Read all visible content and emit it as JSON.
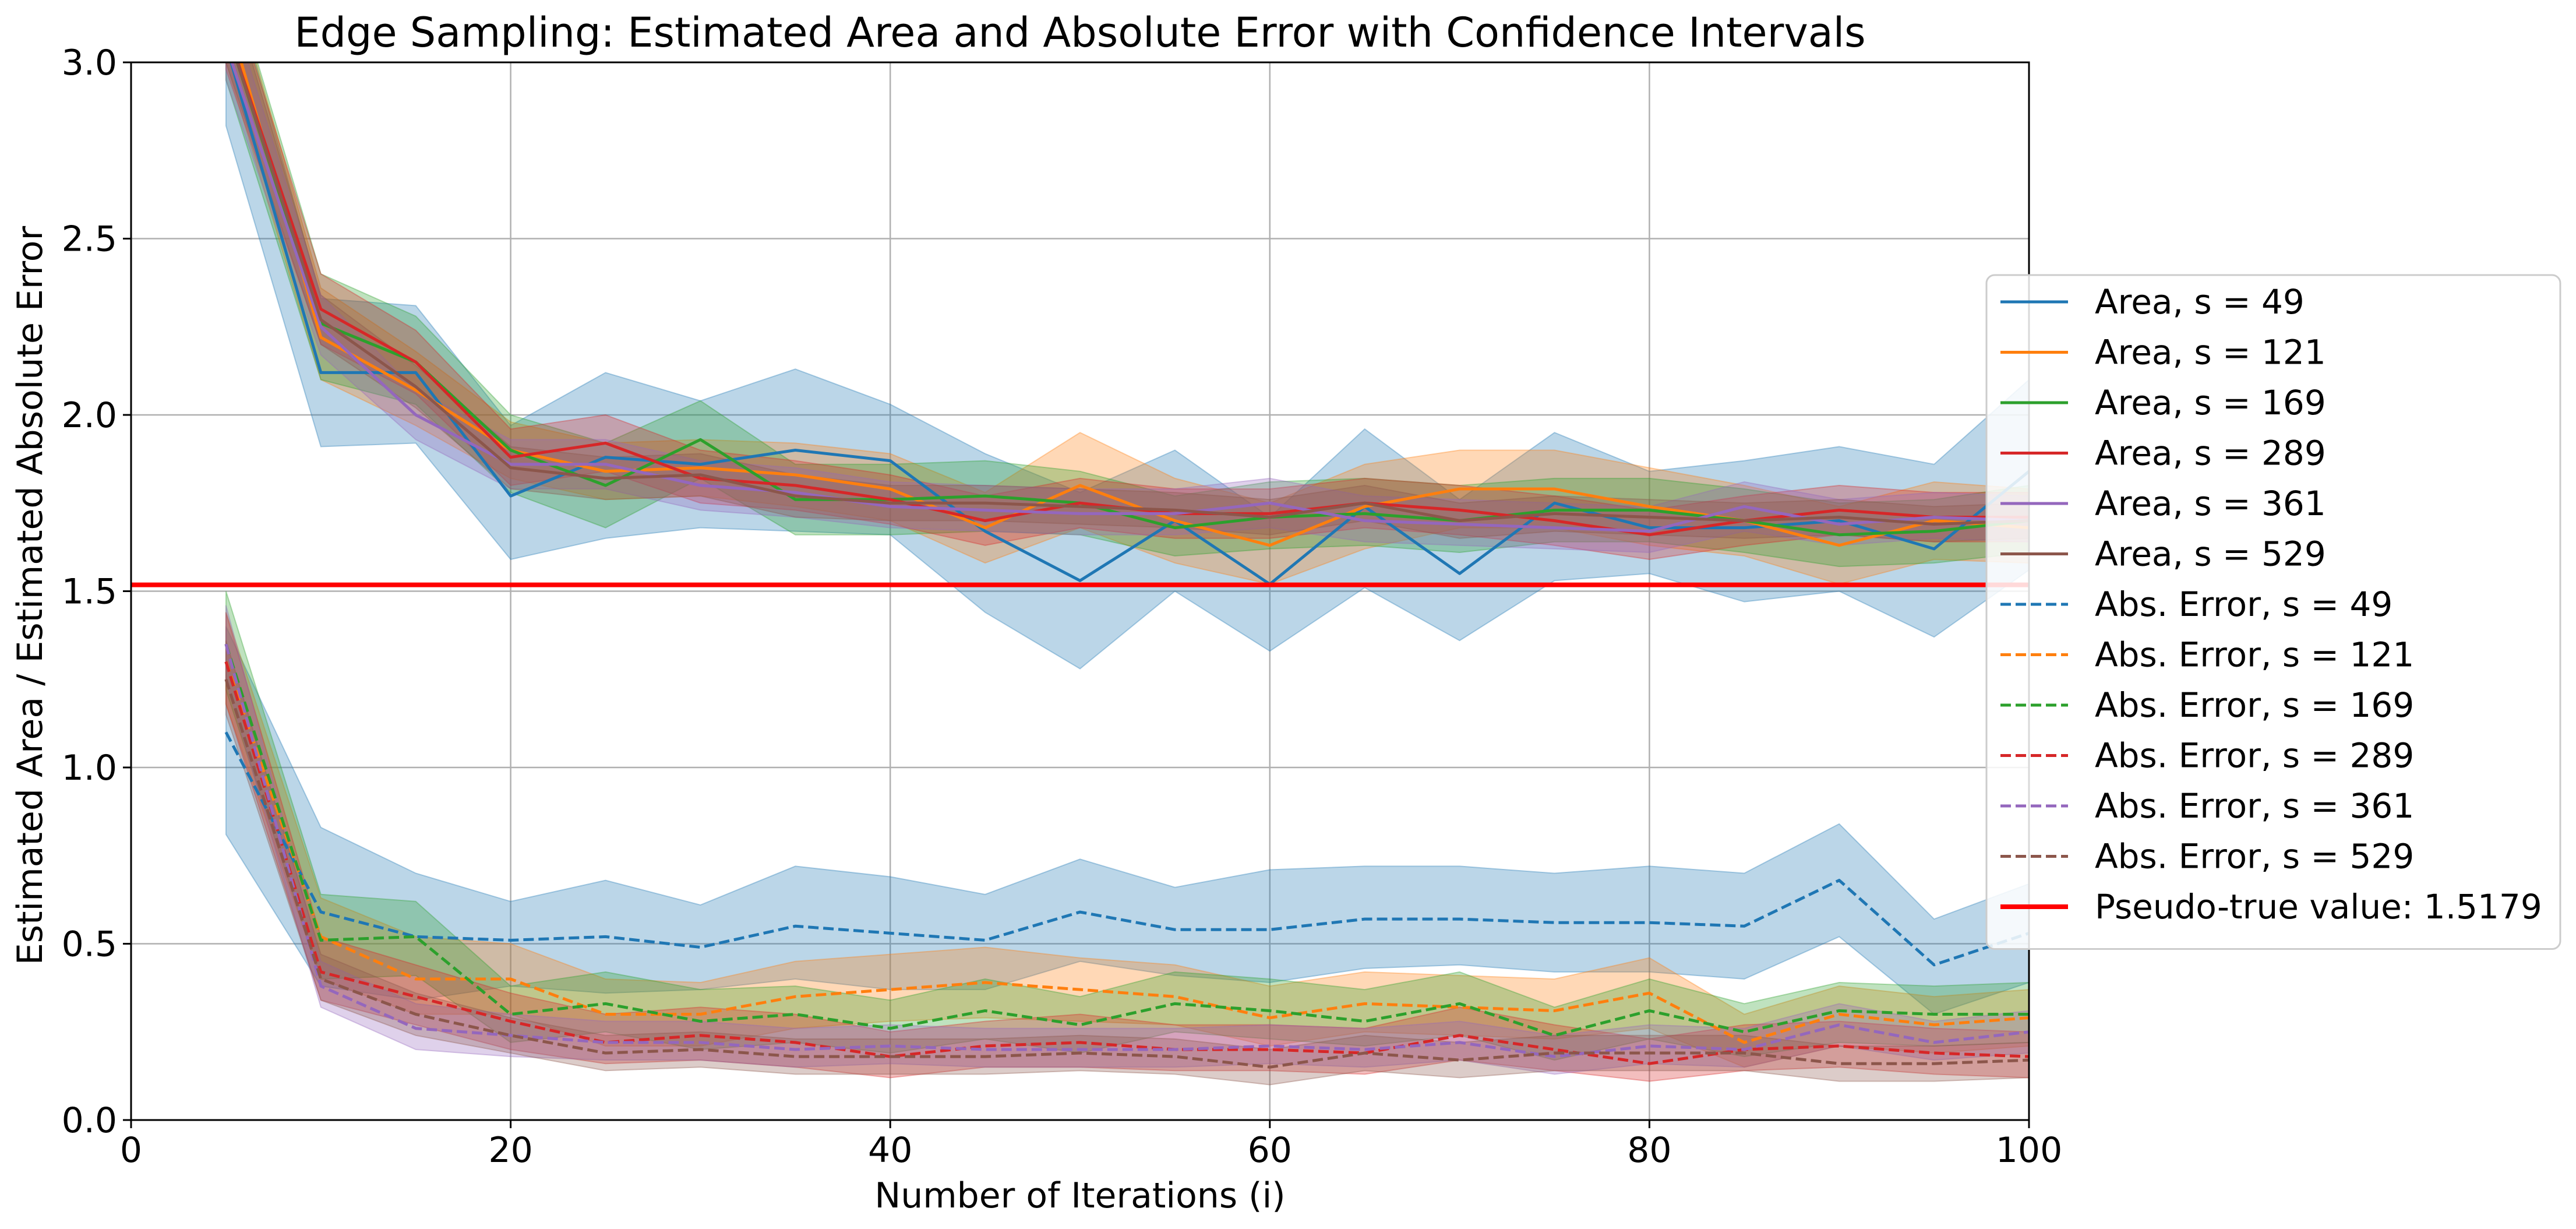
{
  "chart_data": {
    "type": "line",
    "title": "Edge Sampling: Estimated Area and Absolute Error with Confidence Intervals",
    "xlabel": "Number of Iterations (i)",
    "ylabel": "Estimated Area / Estimated Absolute Error",
    "xlim": [
      0,
      100
    ],
    "ylim": [
      0,
      3.0
    ],
    "xticks": [
      0,
      20,
      40,
      60,
      80,
      100
    ],
    "yticks": [
      0.0,
      0.5,
      1.0,
      1.5,
      2.0,
      2.5,
      3.0
    ],
    "xtick_labels": [
      "0",
      "20",
      "40",
      "60",
      "80",
      "100"
    ],
    "ytick_labels": [
      "0.0",
      "0.5",
      "1.0",
      "1.5",
      "2.0",
      "2.5",
      "3.0"
    ],
    "grid": true,
    "legend_position": "right",
    "x": [
      5,
      10,
      15,
      20,
      25,
      30,
      35,
      40,
      45,
      50,
      55,
      60,
      65,
      70,
      75,
      80,
      85,
      90,
      95,
      100
    ],
    "series": [
      {
        "name": "Area, s = 49",
        "color": "#1f77b4",
        "style": "solid",
        "values": [
          3.05,
          2.12,
          2.12,
          1.77,
          1.88,
          1.86,
          1.9,
          1.87,
          1.67,
          1.53,
          1.7,
          1.52,
          1.74,
          1.55,
          1.75,
          1.68,
          1.68,
          1.7,
          1.62,
          1.84
        ],
        "lower": [
          2.82,
          1.91,
          1.92,
          1.59,
          1.65,
          1.68,
          1.67,
          1.66,
          1.44,
          1.28,
          1.5,
          1.33,
          1.51,
          1.36,
          1.53,
          1.55,
          1.47,
          1.5,
          1.37,
          1.56
        ],
        "upper": [
          3.3,
          2.33,
          2.31,
          1.97,
          2.12,
          2.04,
          2.13,
          2.03,
          1.89,
          1.78,
          1.9,
          1.71,
          1.96,
          1.76,
          1.95,
          1.84,
          1.87,
          1.91,
          1.86,
          2.1
        ]
      },
      {
        "name": "Area, s = 121",
        "color": "#ff7f0e",
        "style": "solid",
        "values": [
          3.15,
          2.22,
          2.07,
          1.9,
          1.84,
          1.85,
          1.83,
          1.79,
          1.68,
          1.8,
          1.7,
          1.63,
          1.74,
          1.79,
          1.79,
          1.74,
          1.7,
          1.63,
          1.7,
          1.68
        ],
        "lower": [
          3.0,
          2.1,
          1.97,
          1.82,
          1.76,
          1.77,
          1.74,
          1.7,
          1.58,
          1.68,
          1.58,
          1.52,
          1.62,
          1.68,
          1.68,
          1.63,
          1.6,
          1.52,
          1.59,
          1.58
        ],
        "upper": [
          3.3,
          2.36,
          2.18,
          1.98,
          1.92,
          1.93,
          1.92,
          1.89,
          1.78,
          1.95,
          1.82,
          1.75,
          1.86,
          1.9,
          1.9,
          1.85,
          1.8,
          1.74,
          1.81,
          1.79
        ]
      },
      {
        "name": "Area, s = 169",
        "color": "#2ca02c",
        "style": "solid",
        "values": [
          3.1,
          2.26,
          2.15,
          1.9,
          1.8,
          1.93,
          1.76,
          1.76,
          1.77,
          1.75,
          1.68,
          1.71,
          1.72,
          1.7,
          1.73,
          1.73,
          1.7,
          1.66,
          1.67,
          1.7
        ],
        "lower": [
          2.95,
          2.1,
          2.03,
          1.78,
          1.68,
          1.82,
          1.66,
          1.66,
          1.67,
          1.66,
          1.6,
          1.62,
          1.63,
          1.61,
          1.64,
          1.64,
          1.61,
          1.57,
          1.58,
          1.61
        ],
        "upper": [
          3.3,
          2.4,
          2.28,
          2.0,
          1.92,
          2.04,
          1.86,
          1.86,
          1.87,
          1.84,
          1.77,
          1.81,
          1.82,
          1.8,
          1.82,
          1.82,
          1.79,
          1.75,
          1.76,
          1.8
        ]
      },
      {
        "name": "Area, s = 289",
        "color": "#d62728",
        "style": "solid",
        "values": [
          3.1,
          2.3,
          2.15,
          1.88,
          1.92,
          1.82,
          1.8,
          1.76,
          1.7,
          1.75,
          1.72,
          1.72,
          1.75,
          1.73,
          1.7,
          1.66,
          1.7,
          1.73,
          1.71,
          1.71
        ],
        "lower": [
          2.98,
          2.2,
          2.06,
          1.8,
          1.84,
          1.75,
          1.73,
          1.69,
          1.63,
          1.68,
          1.65,
          1.65,
          1.68,
          1.66,
          1.63,
          1.59,
          1.63,
          1.66,
          1.64,
          1.64
        ],
        "upper": [
          3.25,
          2.4,
          2.24,
          1.96,
          2.0,
          1.9,
          1.87,
          1.83,
          1.77,
          1.82,
          1.79,
          1.79,
          1.82,
          1.8,
          1.77,
          1.73,
          1.77,
          1.8,
          1.78,
          1.78
        ]
      },
      {
        "name": "Area, s = 361",
        "color": "#9467bd",
        "style": "solid",
        "values": [
          3.05,
          2.25,
          2.0,
          1.86,
          1.86,
          1.8,
          1.78,
          1.74,
          1.73,
          1.72,
          1.72,
          1.75,
          1.7,
          1.69,
          1.68,
          1.67,
          1.74,
          1.69,
          1.71,
          1.7
        ],
        "lower": [
          2.95,
          2.17,
          1.93,
          1.79,
          1.79,
          1.73,
          1.71,
          1.68,
          1.67,
          1.66,
          1.66,
          1.68,
          1.64,
          1.63,
          1.62,
          1.61,
          1.67,
          1.63,
          1.65,
          1.64
        ],
        "upper": [
          3.2,
          2.34,
          2.07,
          1.93,
          1.93,
          1.87,
          1.85,
          1.81,
          1.8,
          1.79,
          1.79,
          1.82,
          1.77,
          1.76,
          1.75,
          1.74,
          1.81,
          1.76,
          1.78,
          1.77
        ]
      },
      {
        "name": "Area, s = 529",
        "color": "#8c564b",
        "style": "solid",
        "values": [
          3.1,
          2.27,
          2.08,
          1.85,
          1.82,
          1.83,
          1.77,
          1.75,
          1.75,
          1.74,
          1.73,
          1.71,
          1.75,
          1.7,
          1.72,
          1.71,
          1.7,
          1.71,
          1.69,
          1.7
        ],
        "lower": [
          3.0,
          2.2,
          2.02,
          1.79,
          1.76,
          1.77,
          1.71,
          1.7,
          1.7,
          1.69,
          1.68,
          1.66,
          1.7,
          1.65,
          1.67,
          1.66,
          1.65,
          1.66,
          1.64,
          1.65
        ],
        "upper": [
          3.25,
          2.34,
          2.14,
          1.91,
          1.88,
          1.89,
          1.83,
          1.8,
          1.8,
          1.79,
          1.78,
          1.76,
          1.8,
          1.75,
          1.77,
          1.76,
          1.75,
          1.76,
          1.74,
          1.75
        ]
      },
      {
        "name": "Abs. Error, s = 49",
        "color": "#1f77b4",
        "style": "dashed",
        "values": [
          1.1,
          0.59,
          0.52,
          0.51,
          0.52,
          0.49,
          0.55,
          0.53,
          0.51,
          0.59,
          0.54,
          0.54,
          0.57,
          0.57,
          0.56,
          0.56,
          0.55,
          0.68,
          0.44,
          0.53
        ],
        "lower": [
          0.81,
          0.38,
          0.34,
          0.38,
          0.36,
          0.37,
          0.4,
          0.37,
          0.37,
          0.45,
          0.41,
          0.39,
          0.43,
          0.44,
          0.42,
          0.42,
          0.4,
          0.52,
          0.3,
          0.39
        ],
        "upper": [
          1.4,
          0.83,
          0.7,
          0.62,
          0.68,
          0.61,
          0.72,
          0.69,
          0.64,
          0.74,
          0.66,
          0.71,
          0.72,
          0.72,
          0.7,
          0.72,
          0.7,
          0.84,
          0.57,
          0.67
        ]
      },
      {
        "name": "Abs. Error, s = 121",
        "color": "#ff7f0e",
        "style": "dashed",
        "values": [
          1.3,
          0.52,
          0.4,
          0.4,
          0.3,
          0.3,
          0.35,
          0.37,
          0.39,
          0.37,
          0.35,
          0.29,
          0.33,
          0.32,
          0.31,
          0.36,
          0.22,
          0.3,
          0.27,
          0.29
        ],
        "lower": [
          1.18,
          0.4,
          0.3,
          0.3,
          0.21,
          0.21,
          0.26,
          0.28,
          0.29,
          0.28,
          0.27,
          0.21,
          0.25,
          0.24,
          0.23,
          0.26,
          0.15,
          0.21,
          0.19,
          0.21
        ],
        "upper": [
          1.44,
          0.63,
          0.52,
          0.5,
          0.4,
          0.39,
          0.45,
          0.47,
          0.49,
          0.46,
          0.44,
          0.38,
          0.42,
          0.41,
          0.4,
          0.46,
          0.3,
          0.38,
          0.35,
          0.37
        ]
      },
      {
        "name": "Abs. Error, s = 169",
        "color": "#2ca02c",
        "style": "dashed",
        "values": [
          1.35,
          0.51,
          0.52,
          0.3,
          0.33,
          0.28,
          0.3,
          0.26,
          0.31,
          0.27,
          0.33,
          0.31,
          0.28,
          0.33,
          0.24,
          0.31,
          0.25,
          0.31,
          0.3,
          0.3
        ],
        "lower": [
          1.22,
          0.4,
          0.41,
          0.22,
          0.25,
          0.2,
          0.22,
          0.19,
          0.23,
          0.19,
          0.25,
          0.23,
          0.21,
          0.24,
          0.17,
          0.23,
          0.18,
          0.22,
          0.21,
          0.22
        ],
        "upper": [
          1.5,
          0.64,
          0.62,
          0.38,
          0.42,
          0.37,
          0.38,
          0.34,
          0.4,
          0.35,
          0.42,
          0.4,
          0.37,
          0.42,
          0.32,
          0.4,
          0.33,
          0.39,
          0.38,
          0.39
        ]
      },
      {
        "name": "Abs. Error, s = 289",
        "color": "#d62728",
        "style": "dashed",
        "values": [
          1.3,
          0.42,
          0.35,
          0.28,
          0.22,
          0.24,
          0.22,
          0.18,
          0.21,
          0.22,
          0.2,
          0.2,
          0.19,
          0.24,
          0.2,
          0.16,
          0.2,
          0.21,
          0.19,
          0.18
        ],
        "lower": [
          1.18,
          0.34,
          0.27,
          0.2,
          0.16,
          0.17,
          0.15,
          0.12,
          0.15,
          0.15,
          0.14,
          0.14,
          0.13,
          0.17,
          0.14,
          0.11,
          0.14,
          0.15,
          0.13,
          0.12
        ],
        "upper": [
          1.44,
          0.52,
          0.44,
          0.36,
          0.3,
          0.32,
          0.3,
          0.25,
          0.28,
          0.3,
          0.27,
          0.27,
          0.26,
          0.32,
          0.27,
          0.23,
          0.27,
          0.28,
          0.26,
          0.25
        ]
      },
      {
        "name": "Abs. Error, s = 361",
        "color": "#9467bd",
        "style": "dashed",
        "values": [
          1.35,
          0.38,
          0.26,
          0.24,
          0.22,
          0.22,
          0.2,
          0.21,
          0.2,
          0.2,
          0.2,
          0.21,
          0.2,
          0.22,
          0.18,
          0.21,
          0.2,
          0.27,
          0.22,
          0.25
        ],
        "lower": [
          1.25,
          0.32,
          0.2,
          0.18,
          0.17,
          0.17,
          0.15,
          0.16,
          0.15,
          0.15,
          0.15,
          0.16,
          0.15,
          0.17,
          0.13,
          0.16,
          0.15,
          0.21,
          0.17,
          0.19
        ],
        "upper": [
          1.46,
          0.45,
          0.33,
          0.3,
          0.28,
          0.28,
          0.26,
          0.27,
          0.26,
          0.26,
          0.26,
          0.27,
          0.26,
          0.28,
          0.24,
          0.27,
          0.26,
          0.33,
          0.28,
          0.31
        ]
      },
      {
        "name": "Abs. Error, s = 529",
        "color": "#8c564b",
        "style": "dashed",
        "values": [
          1.25,
          0.4,
          0.3,
          0.24,
          0.19,
          0.2,
          0.18,
          0.18,
          0.18,
          0.19,
          0.18,
          0.15,
          0.19,
          0.17,
          0.19,
          0.19,
          0.19,
          0.16,
          0.16,
          0.17
        ],
        "lower": [
          1.15,
          0.34,
          0.24,
          0.19,
          0.14,
          0.15,
          0.13,
          0.13,
          0.13,
          0.14,
          0.13,
          0.1,
          0.14,
          0.12,
          0.14,
          0.14,
          0.14,
          0.11,
          0.11,
          0.12
        ],
        "upper": [
          1.36,
          0.47,
          0.36,
          0.29,
          0.24,
          0.25,
          0.23,
          0.23,
          0.23,
          0.24,
          0.23,
          0.2,
          0.24,
          0.22,
          0.24,
          0.24,
          0.24,
          0.21,
          0.21,
          0.22
        ]
      }
    ],
    "reference_line": {
      "name": "Pseudo-true value: 1.5179",
      "y": 1.5179,
      "color": "#ff0000"
    }
  }
}
